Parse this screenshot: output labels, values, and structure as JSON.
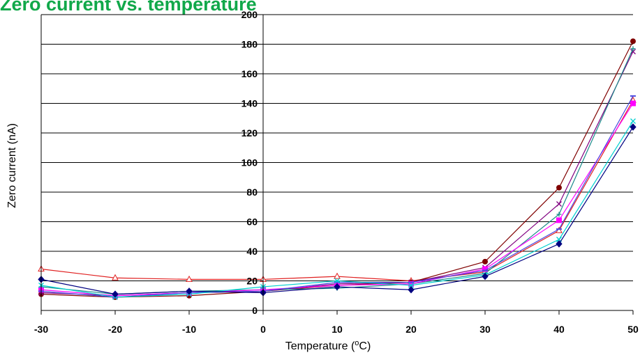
{
  "chart_title": "Zero current vs. temperature",
  "chart_data": {
    "type": "line",
    "title": "Zero current vs. temperature",
    "xlabel": "Temperature (",
    "xlabel_superscript": "o",
    "xlabel_suffix": "C)",
    "ylabel": "Zero current (nA)",
    "x": [
      -30,
      -20,
      -10,
      0,
      10,
      20,
      30,
      40,
      50
    ],
    "xlim": [
      -30,
      50
    ],
    "ylim": [
      0,
      200
    ],
    "xticks": [
      -30,
      -20,
      -10,
      0,
      10,
      20,
      30,
      40,
      50
    ],
    "yticks": [
      0,
      20,
      40,
      60,
      80,
      100,
      120,
      140,
      160,
      180,
      200
    ],
    "grid": "horizontal",
    "legend": "none",
    "series": [
      {
        "color": "#e02020",
        "marker": "triangle-open",
        "values": [
          28,
          22,
          21,
          21,
          23,
          20,
          26,
          54,
          142
        ]
      },
      {
        "color": "#800000",
        "marker": "circle",
        "values": [
          11,
          9,
          10,
          13,
          17,
          19,
          33,
          83,
          182
        ]
      },
      {
        "color": "#800080",
        "marker": "x",
        "values": [
          12,
          10,
          12,
          13,
          18,
          19,
          29,
          72,
          175
        ]
      },
      {
        "color": "#1a8a8a",
        "marker": "plus",
        "values": [
          16,
          11,
          13,
          14,
          15,
          18,
          25,
          65,
          177
        ]
      },
      {
        "color": "#ff00ff",
        "marker": "square",
        "values": [
          14,
          10,
          12,
          14,
          17,
          18,
          28,
          61,
          140
        ]
      },
      {
        "color": "#4a4ae0",
        "marker": "dash",
        "values": [
          13,
          9,
          12,
          13,
          19,
          19,
          27,
          55,
          145
        ]
      },
      {
        "color": "#00d0d0",
        "marker": "x",
        "values": [
          17,
          9,
          11,
          16,
          20,
          17,
          24,
          48,
          128
        ]
      },
      {
        "color": "#000080",
        "marker": "diamond",
        "values": [
          21,
          11,
          13,
          12,
          16,
          14,
          23,
          45,
          124
        ]
      }
    ]
  }
}
